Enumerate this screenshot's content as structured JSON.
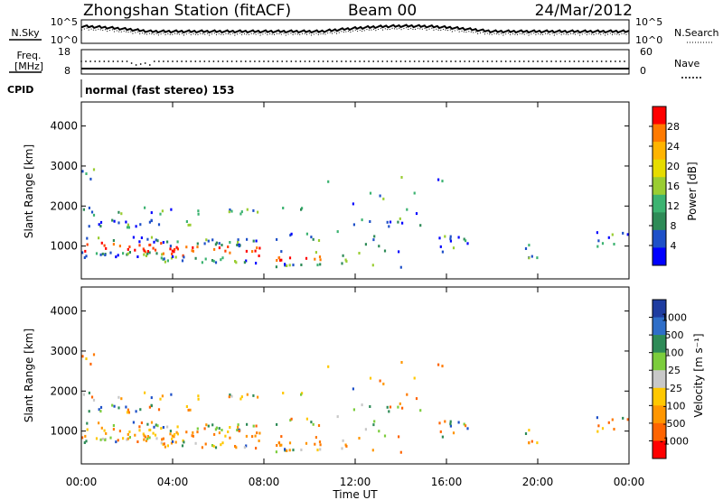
{
  "header": {
    "title": "Zhongshan Station (fitACF)",
    "beam": "Beam 00",
    "date": "24/Mar/2012"
  },
  "top_panels": {
    "nsky_label": "N.Sky",
    "nsky_ticks": [
      "10^5",
      "10^0"
    ],
    "nsearch_label": "N.Search",
    "nsearch_ticks": [
      "10^5",
      "10^0"
    ],
    "freq_label": "Freq.",
    "freq_unit": "[MHz]",
    "freq_ticks": [
      "18",
      "8"
    ],
    "nave_label": "Nave",
    "nave_ticks": [
      "60",
      "0"
    ],
    "cpid_label": "CPID",
    "cpid_text": "normal (fast stereo) 153"
  },
  "chart_data": [
    {
      "type": "heatmap",
      "name": "power",
      "ylabel": "Slant Range [km]",
      "yticks": [
        "4000",
        "3000",
        "2000",
        "1000"
      ],
      "ylim": [
        180,
        4600
      ],
      "colorbar_label": "Power [dB]",
      "colorbar_ticks": [
        "28",
        "24",
        "20",
        "16",
        "12",
        "8",
        "4"
      ],
      "colorbar_colors": [
        "#ff0000",
        "#ff7a00",
        "#ffb400",
        "#e6dc00",
        "#9acd32",
        "#3cb371",
        "#2e8b57",
        "#1e50c8",
        "#0000ff"
      ]
    },
    {
      "type": "heatmap",
      "name": "velocity",
      "ylabel": "Slant Range [km]",
      "yticks": [
        "4000",
        "3000",
        "2000",
        "1000"
      ],
      "ylim": [
        180,
        4600
      ],
      "colorbar_label": "Velocity [m s⁻¹]",
      "colorbar_ticks": [
        "1000",
        "500",
        "100",
        "25",
        "-25",
        "-100",
        "-500",
        "-1000"
      ],
      "colorbar_colors": [
        "#1e3ca0",
        "#2e6ec8",
        "#2e8b57",
        "#7ccd3c",
        "#c8c8c8",
        "#ffc800",
        "#ff9600",
        "#ff6400",
        "#ff0000"
      ]
    }
  ],
  "x_axis": {
    "ticks": [
      "00:00",
      "04:00",
      "08:00",
      "12:00",
      "16:00",
      "20:00",
      "00:00"
    ],
    "label": "Time UT"
  }
}
